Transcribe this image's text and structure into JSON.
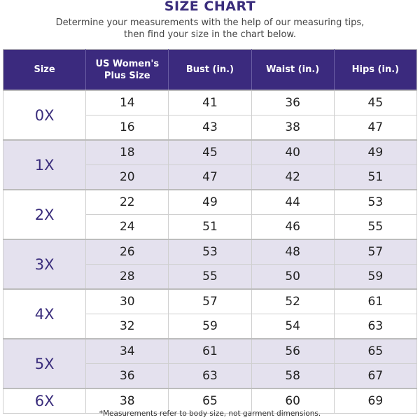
{
  "title": "SIZE CHART",
  "subtitle_line1": "Determine your measurements with the help of our measuring tips,",
  "subtitle_line2": "then find your size in the chart below.",
  "headers": [
    "Size",
    "US Women's Plus Size",
    "Bust (in.)",
    "Waist (in.)",
    "Hips (in.)"
  ],
  "groups": [
    {
      "size": "0X",
      "rows": [
        [
          "14",
          "41",
          "36",
          "45"
        ],
        [
          "16",
          "43",
          "38",
          "47"
        ]
      ]
    },
    {
      "size": "1X",
      "rows": [
        [
          "18",
          "45",
          "40",
          "49"
        ],
        [
          "20",
          "47",
          "42",
          "51"
        ]
      ]
    },
    {
      "size": "2X",
      "rows": [
        [
          "22",
          "49",
          "44",
          "53"
        ],
        [
          "24",
          "51",
          "46",
          "55"
        ]
      ]
    },
    {
      "size": "3X",
      "rows": [
        [
          "26",
          "53",
          "48",
          "57"
        ],
        [
          "28",
          "55",
          "50",
          "59"
        ]
      ]
    },
    {
      "size": "4X",
      "rows": [
        [
          "30",
          "57",
          "52",
          "61"
        ],
        [
          "32",
          "59",
          "54",
          "63"
        ]
      ]
    },
    {
      "size": "5X",
      "rows": [
        [
          "34",
          "61",
          "56",
          "65"
        ],
        [
          "36",
          "63",
          "58",
          "67"
        ]
      ]
    },
    {
      "size": "6X",
      "rows": [
        [
          "38",
          "65",
          "60",
          "69"
        ]
      ]
    }
  ],
  "footnote": "*Measurements refer to body size, not garment dimensions.",
  "colors": {
    "header": "#3b2a7e",
    "shade": "#e4e1ee"
  }
}
